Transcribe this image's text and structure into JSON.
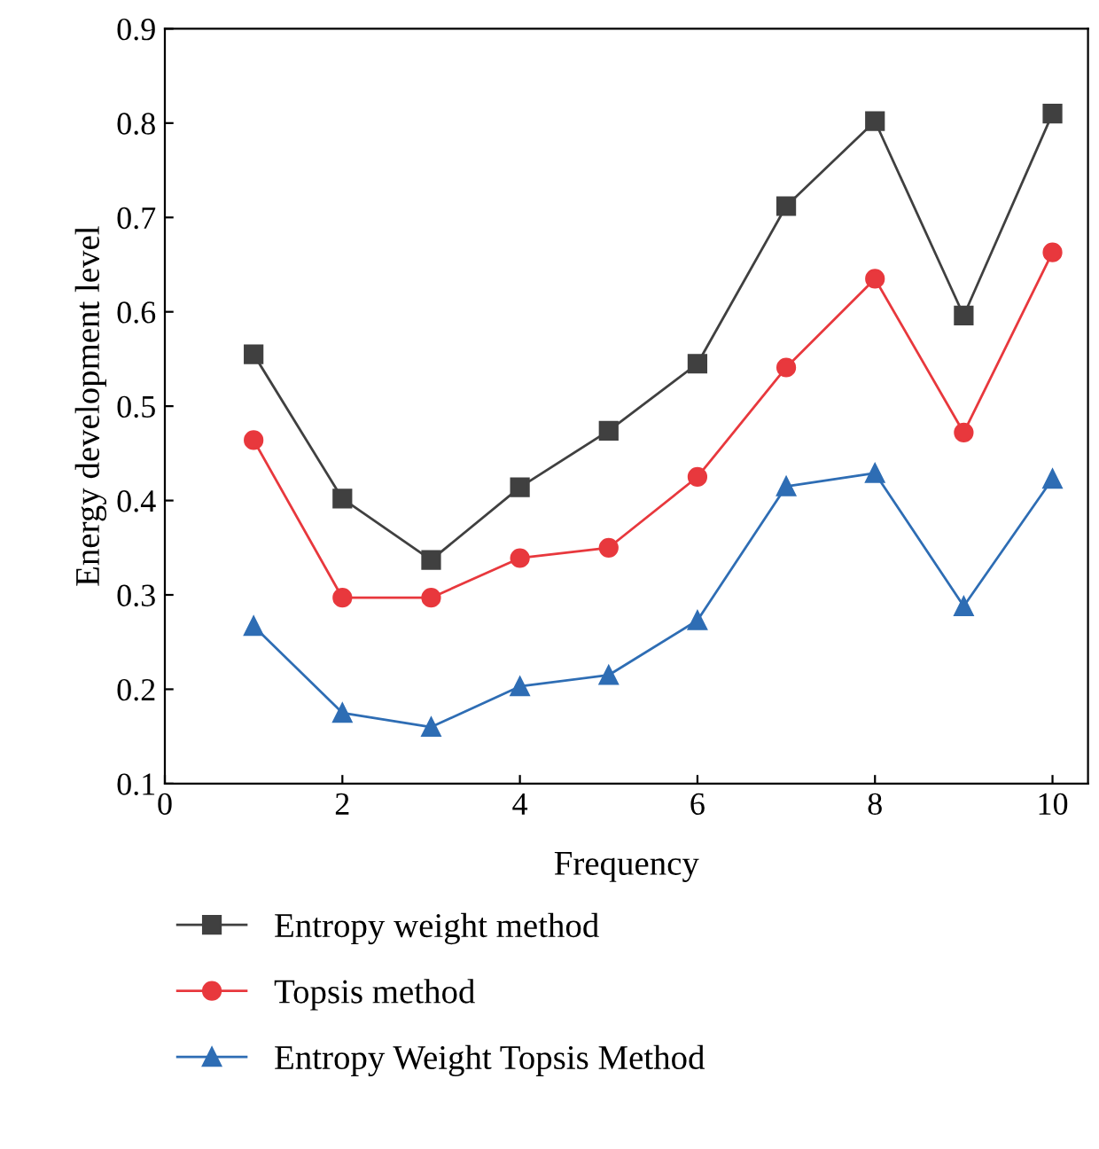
{
  "chart_data": {
    "type": "line",
    "xlabel": "Frequency",
    "ylabel": "Energy development level",
    "x": [
      1,
      2,
      3,
      4,
      5,
      6,
      7,
      8,
      9,
      10
    ],
    "series": [
      {
        "name": "Entropy weight method",
        "color": "#404040",
        "marker": "square",
        "values": [
          0.555,
          0.402,
          0.337,
          0.414,
          0.474,
          0.545,
          0.712,
          0.802,
          0.596,
          0.81
        ]
      },
      {
        "name": "Topsis method",
        "color": "#e8383d",
        "marker": "circle",
        "values": [
          0.464,
          0.297,
          0.297,
          0.339,
          0.35,
          0.425,
          0.541,
          0.635,
          0.472,
          0.663
        ]
      },
      {
        "name": "Entropy Weight Topsis Method",
        "color": "#2e6db4",
        "marker": "triangle",
        "values": [
          0.267,
          0.175,
          0.16,
          0.203,
          0.215,
          0.273,
          0.415,
          0.429,
          0.288,
          0.423
        ]
      }
    ],
    "xlim": [
      0,
      10.4
    ],
    "xticks": [
      0,
      2,
      4,
      6,
      8,
      10
    ],
    "ylim": [
      0.1,
      0.9
    ],
    "yticks": [
      0.1,
      0.2,
      0.3,
      0.4,
      0.5,
      0.6,
      0.7,
      0.8,
      0.9
    ],
    "grid": false,
    "legend": "bottom",
    "line_style": "solid"
  }
}
